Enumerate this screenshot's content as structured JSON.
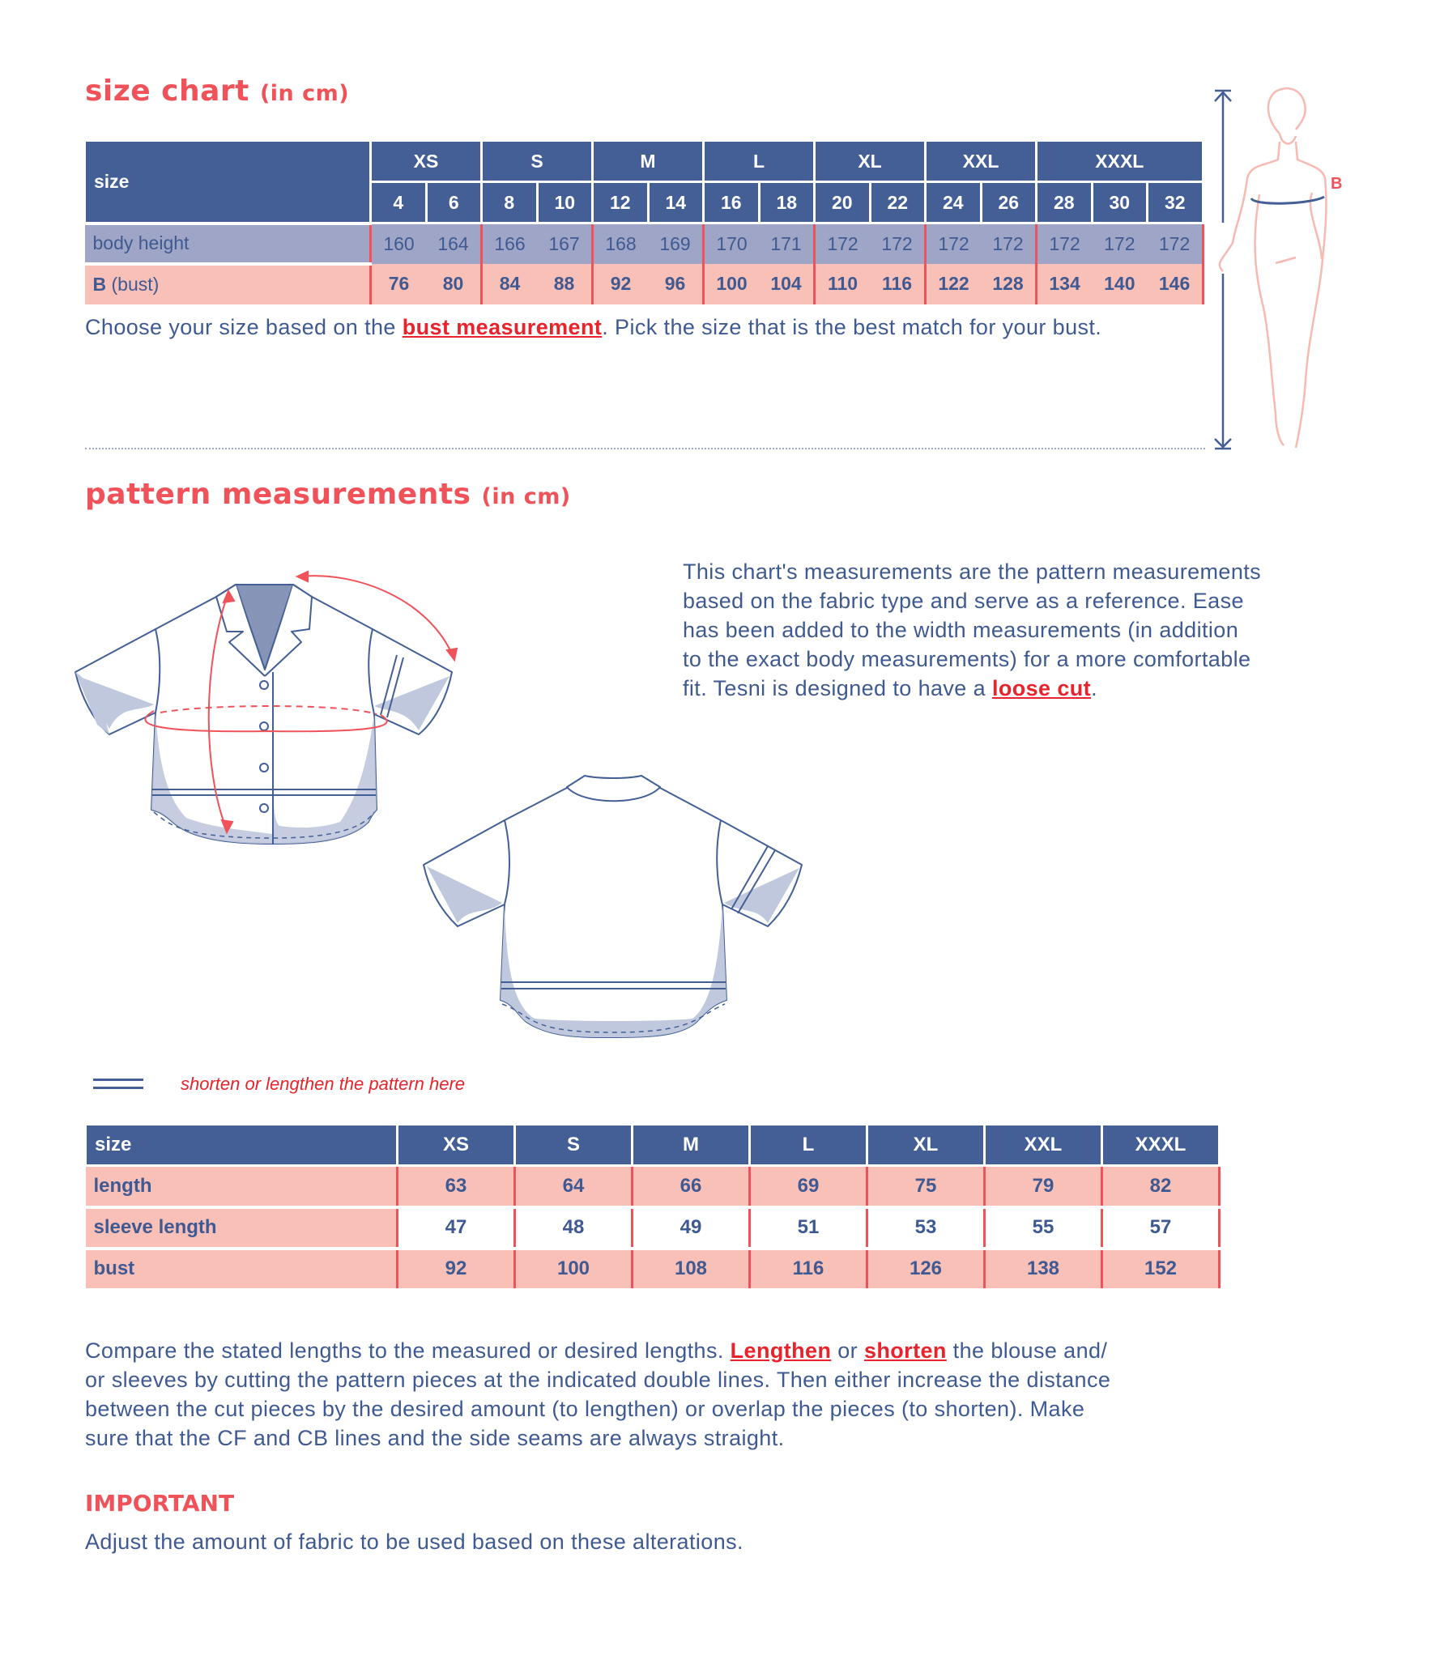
{
  "size_chart": {
    "title": "size chart",
    "unit": "(in cm)",
    "size_label": "size",
    "groups": [
      {
        "name": "XS",
        "sizes": [
          "4",
          "6"
        ]
      },
      {
        "name": "S",
        "sizes": [
          "8",
          "10"
        ]
      },
      {
        "name": "M",
        "sizes": [
          "12",
          "14"
        ]
      },
      {
        "name": "L",
        "sizes": [
          "16",
          "18"
        ]
      },
      {
        "name": "XL",
        "sizes": [
          "20",
          "22"
        ]
      },
      {
        "name": "XXL",
        "sizes": [
          "24",
          "26"
        ]
      },
      {
        "name": "XXXL",
        "sizes": [
          "28",
          "30",
          "32"
        ]
      }
    ],
    "rows": [
      {
        "label": "body height",
        "values": [
          "160",
          "164",
          "166",
          "167",
          "168",
          "169",
          "170",
          "171",
          "172",
          "172",
          "172",
          "172",
          "172",
          "172",
          "172"
        ]
      },
      {
        "label_bold": "B",
        "label": "(bust)",
        "values": [
          "76",
          "80",
          "84",
          "88",
          "92",
          "96",
          "100",
          "104",
          "110",
          "116",
          "122",
          "128",
          "134",
          "140",
          "146"
        ]
      }
    ],
    "note": {
      "before": "Choose your size based on the ",
      "link": "bust measurement",
      "after": ". Pick the size that is the best match for your bust."
    },
    "figure_marker": "B"
  },
  "pattern": {
    "title": "pattern measurements",
    "unit": "(in cm)",
    "description": [
      "This chart's measurements are the pattern measurements",
      "based on the fabric type and serve as a reference. Ease",
      "has been added to the width measurements (in addition",
      "to the exact body measurements) for a more comfortable"
    ],
    "description_last": {
      "before": "fit. Tesni is designed to have a ",
      "link": "loose cut",
      "after": "."
    },
    "legend": "shorten or lengthen the pattern here",
    "table": {
      "size_label": "size",
      "sizes": [
        "XS",
        "S",
        "M",
        "L",
        "XL",
        "XXL",
        "XXXL"
      ],
      "rows": [
        {
          "label": "length",
          "values": [
            "63",
            "64",
            "66",
            "69",
            "75",
            "79",
            "82"
          ]
        },
        {
          "label": "sleeve length",
          "values": [
            "47",
            "48",
            "49",
            "51",
            "53",
            "55",
            "57"
          ]
        },
        {
          "label": "bust",
          "values": [
            "92",
            "100",
            "108",
            "116",
            "126",
            "138",
            "152"
          ]
        }
      ]
    },
    "instructions": {
      "l1_a": "Compare the stated lengths to the measured or desired lengths. ",
      "l1_link1": "Lengthen",
      "l1_b": " or ",
      "l1_link2": "shorten",
      "l1_c": " the blouse and/",
      "l2": "or sleeves by cutting the pattern pieces at the indicated double lines. Then either increase the distance",
      "l3": "between the cut pieces by the desired amount (to lengthen) or overlap the pieces (to shorten). Make",
      "l4": "sure that the CF and CB lines and the side seams are always straight."
    },
    "important_title": "IMPORTANT",
    "important_text": "Adjust the amount of fabric to be used based on these alterations."
  },
  "colors": {
    "navy": "#435f96",
    "lavender": "#9ea5c6",
    "pink": "#f9c0b8",
    "red": "#f0525a",
    "link": "#e8232b"
  }
}
